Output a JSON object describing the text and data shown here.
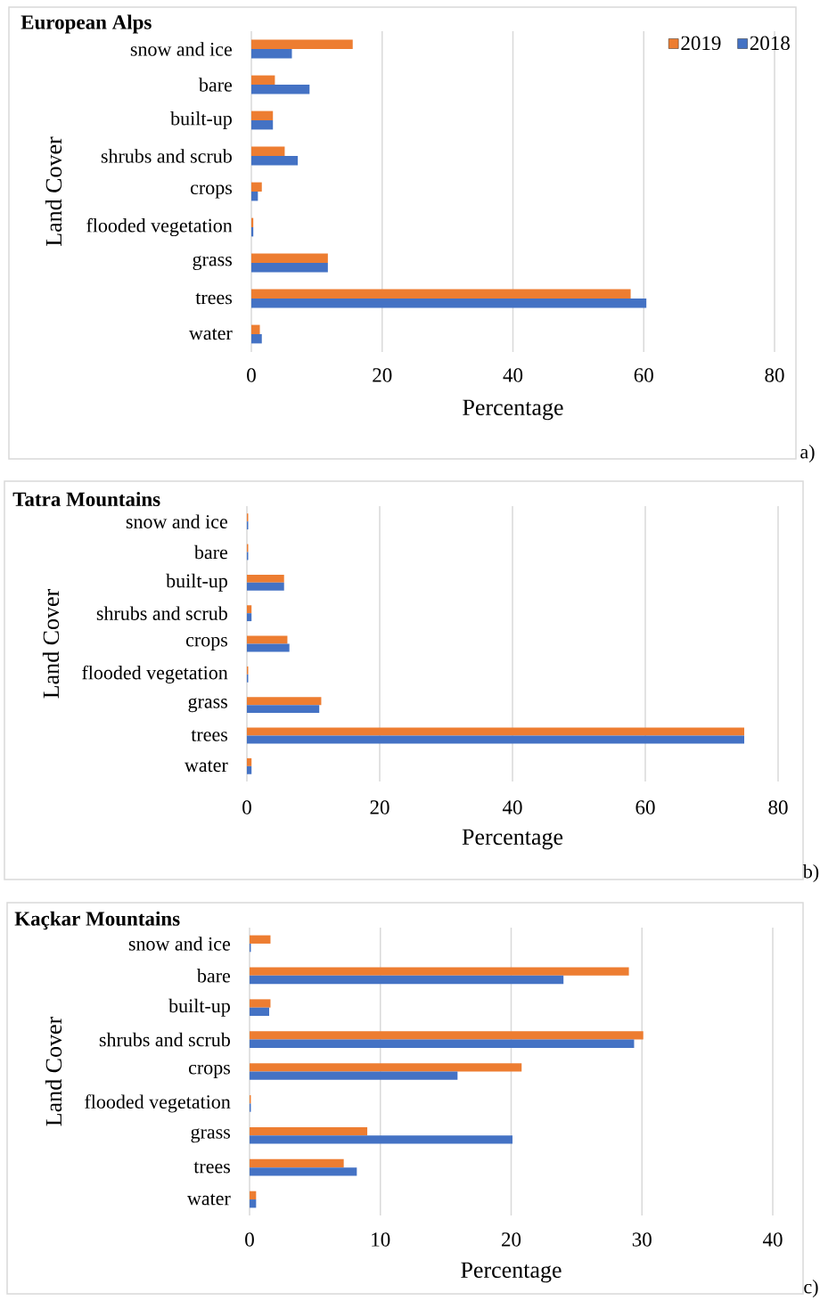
{
  "chart_data": [
    {
      "type": "bar",
      "orientation": "horizontal",
      "title": "European Alps",
      "xlabel": "Percentage",
      "ylabel": "Land Cover",
      "categories": [
        "snow and ice",
        "bare",
        "built-up",
        "shrubs and scrub",
        "crops",
        "flooded vegetation",
        "grass",
        "trees",
        "water"
      ],
      "series": [
        {
          "name": "2019",
          "color": "#ed7d31",
          "values": [
            15.5,
            3.6,
            3.3,
            5.1,
            1.6,
            0.3,
            11.7,
            58.0,
            1.3
          ]
        },
        {
          "name": "2018",
          "color": "#4472c4",
          "values": [
            6.2,
            8.9,
            3.3,
            7.1,
            1.0,
            0.3,
            11.7,
            60.4,
            1.6
          ]
        }
      ],
      "xlim": [
        0,
        80
      ],
      "xticks": [
        0,
        20,
        40,
        60,
        80
      ],
      "grid": "x",
      "legend": "top right",
      "annotations": [
        "a)"
      ]
    },
    {
      "type": "bar",
      "orientation": "horizontal",
      "title": "Tatra Mountains",
      "xlabel": "Percentage",
      "ylabel": "Land Cover",
      "categories": [
        "snow and ice",
        "bare",
        "built-up",
        "shrubs and scrub",
        "crops",
        "flooded vegetation",
        "grass",
        "trees",
        "water"
      ],
      "series": [
        {
          "color": "#ed7d31",
          "values": [
            0.2,
            0.2,
            5.6,
            0.7,
            6.1,
            0.2,
            11.2,
            74.9,
            0.7
          ]
        },
        {
          "color": "#4472c4",
          "values": [
            0.2,
            0.2,
            5.6,
            0.7,
            6.4,
            0.2,
            10.9,
            74.9,
            0.7
          ]
        }
      ],
      "xlim": [
        0,
        80
      ],
      "xticks": [
        0,
        20,
        40,
        60,
        80
      ],
      "grid": "x",
      "annotations": [
        "b)"
      ]
    },
    {
      "type": "bar",
      "orientation": "horizontal",
      "title": "Kaçkar Mountains",
      "xlabel": "Percentage",
      "ylabel": "Land Cover",
      "categories": [
        "snow and ice",
        "bare",
        "built-up",
        "shrubs and scrub",
        "crops",
        "flooded vegetation",
        "grass",
        "trees",
        "water"
      ],
      "series": [
        {
          "color": "#ed7d31",
          "values": [
            1.6,
            29.0,
            1.6,
            30.1,
            20.8,
            0.1,
            9.0,
            7.2,
            0.5
          ]
        },
        {
          "color": "#4472c4",
          "values": [
            0.1,
            24.0,
            1.5,
            29.4,
            15.9,
            0.1,
            20.1,
            8.2,
            0.5
          ]
        }
      ],
      "xlim": [
        0,
        40
      ],
      "xticks": [
        0,
        10,
        20,
        30,
        40
      ],
      "grid": "x",
      "annotations": [
        "c)"
      ]
    }
  ]
}
